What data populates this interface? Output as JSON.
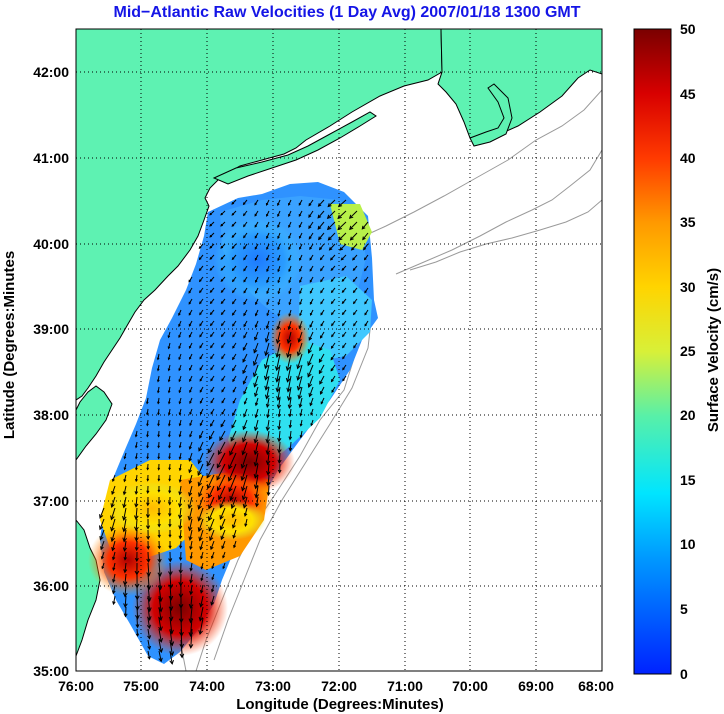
{
  "chart_data": {
    "type": "heatmap",
    "title": "Mid−Atlantic Raw Velocities (1 Day Avg) 2007/01/18 1300 GMT",
    "xlabel": "Longitude (Degrees:Minutes)",
    "ylabel": "Latitude (Degrees:Minutes",
    "x_ticks": [
      "76:00",
      "75:00",
      "74:00",
      "73:00",
      "72:00",
      "71:00",
      "70:00",
      "69:00",
      "68:00"
    ],
    "y_ticks": [
      "42:00",
      "41:00",
      "40:00",
      "39:00",
      "38:00",
      "37:00",
      "36:00",
      "35:00"
    ],
    "xlim": [
      -76,
      -68
    ],
    "ylim": [
      35,
      42.5
    ],
    "grid": true,
    "colorbar": {
      "label": "Surface Velocity (cm/s)",
      "ticks": [
        "0",
        "5",
        "10",
        "15",
        "20",
        "25",
        "30",
        "35",
        "40",
        "45",
        "50"
      ],
      "range": [
        0,
        50
      ]
    },
    "field": {
      "lon_range": [
        -75.5,
        -71.5
      ],
      "lat_range": [
        35.2,
        40.7
      ],
      "velocity_points": [
        {
          "lon": -73.6,
          "lat": 37.4,
          "speed": 48
        },
        {
          "lon": -72.8,
          "lat": 38.6,
          "speed": 45
        },
        {
          "lon": -74.3,
          "lat": 35.5,
          "speed": 50
        },
        {
          "lon": -74.8,
          "lat": 36.0,
          "speed": 42
        },
        {
          "lon": -75.3,
          "lat": 36.8,
          "speed": 30
        },
        {
          "lon": -71.9,
          "lat": 40.3,
          "speed": 25
        },
        {
          "lon": -74.0,
          "lat": 36.9,
          "speed": 33
        },
        {
          "lon": -73.2,
          "lat": 37.7,
          "speed": 30
        },
        {
          "lon": -73.8,
          "lat": 39.6,
          "speed": 8
        },
        {
          "lon": -73.4,
          "lat": 39.2,
          "speed": 10
        }
      ]
    }
  },
  "colors": {
    "title": "#1515e6",
    "land": "#5ef2b2",
    "coast": "#000000",
    "bathymetry": "#9a9a9a",
    "grid": "#000000"
  }
}
